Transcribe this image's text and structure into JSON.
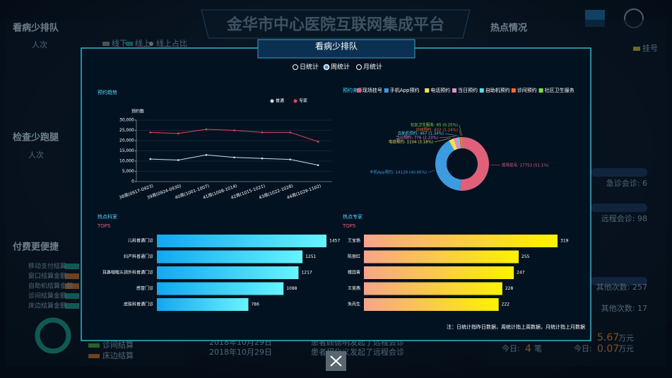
{
  "header": {
    "title": "金华市中心医院互联网集成平台"
  },
  "left_panel": {
    "sections": [
      "看病少排队",
      "检查少跑腿",
      "付费更便捷"
    ],
    "unit": "人次",
    "legend": [
      "线下",
      "线上",
      "线上占比"
    ],
    "payments": [
      "移动支付结算",
      "窗口结算金额",
      "自助机结算金额",
      "诊间结算金额",
      "床边结算金额"
    ],
    "ring_items": [
      "诊间结算",
      "床边结算"
    ]
  },
  "right_panel": {
    "title": "热点情况",
    "legend": "挂号",
    "stats": [
      "急诊会诊: 6",
      "远程会诊: 98",
      "其他次数: 257",
      "其他次数: 17"
    ],
    "money": [
      {
        "value": "5.67",
        "unit": "万元"
      },
      {
        "label": "今日:",
        "value": "4",
        "unit": "笔"
      },
      {
        "label": "今日:",
        "value": "0.07",
        "unit": "万元"
      }
    ]
  },
  "feed": [
    {
      "date": "2018年10月29日",
      "text": "患者顾德明发起了远程会诊"
    },
    {
      "date": "2018年10月29日",
      "text": "患者程化义发起了远程会诊"
    }
  ],
  "modal": {
    "title": "看病少排队",
    "options": [
      "日统计",
      "周统计",
      "月统计"
    ],
    "selected": 1,
    "note": "注：日统计指昨日数据，周统计指上周数据，月统计指上月数据"
  },
  "chart_data": [
    {
      "type": "line",
      "title": "预约趋势",
      "y_label": "预约数",
      "categories": [
        "38周(0917-0923)",
        "39周(0924-0930)",
        "40周(1001-1007)",
        "41周(1008-1014)",
        "42周(1015-1021)",
        "43周(1022-1028)",
        "44周(1029-1102)"
      ],
      "series": [
        {
          "name": "普通",
          "color": "#bfe8e8",
          "values": [
            11000,
            10500,
            13000,
            11800,
            11300,
            10800,
            8000
          ]
        },
        {
          "name": "专家",
          "color": "#d9485a",
          "values": [
            24000,
            23500,
            25500,
            25000,
            24000,
            24000,
            19500
          ]
        }
      ],
      "ylim": [
        0,
        30000
      ],
      "yticks": [
        0,
        {
          "value": 5000,
          "label": "5,000"
        },
        {
          "value": 10000,
          "label": "10,000"
        },
        {
          "value": 15000,
          "label": "15,000"
        },
        {
          "value": 20000,
          "label": "20,000"
        },
        {
          "value": 25000,
          "label": "25,000"
        },
        {
          "value": 30000,
          "label": "30,000"
        }
      ],
      "grid": true
    },
    {
      "type": "pie",
      "title": "预约来源",
      "categories": [
        "现场挂号",
        "手机App预约",
        "电话预约",
        "当日预约",
        "自助机预约",
        "诊间预约",
        "社区卫生服务"
      ],
      "values": [
        17753,
        14128,
        1104,
        776,
        467,
        432,
        85
      ],
      "value_labels": [
        "现场挂号: 17753 (51.1%)",
        "手机App预约: 14128 (40.66%)",
        "电话预约: 1104 (3.18%)",
        "当日预约: 776 (2.23%)",
        "自助机预约: 467 (1.34%)",
        "诊间预约: 432 (1.24%)",
        "社区卫生服务: 85 (0.25%)"
      ],
      "colors": [
        "#e0607a",
        "#3d9be0",
        "#f2e24a",
        "#e68ad0",
        "#5ad8e8",
        "#f06a30",
        "#7ee040"
      ]
    },
    {
      "type": "hbar",
      "title": "热点科室",
      "subtitle": "TOP5",
      "categories": [
        "儿科普通门诊",
        "妇产科普通门诊",
        "耳鼻咽喉头颈外科普通门诊",
        "感冒门诊",
        "皮肤科普通门诊"
      ],
      "values": [
        1457,
        1251,
        1217,
        1088,
        786
      ],
      "colors": [
        "#12a8f0",
        "#66f4ff"
      ]
    },
    {
      "type": "hbar",
      "title": "热点专家",
      "subtitle": "TOP5",
      "categories": [
        "王宝艳",
        "陈丽红",
        "楼国青",
        "王美燕",
        "朱丙生"
      ],
      "values": [
        319,
        255,
        247,
        228,
        222
      ],
      "colors": [
        "#f7a58a",
        "#fff200"
      ]
    }
  ]
}
